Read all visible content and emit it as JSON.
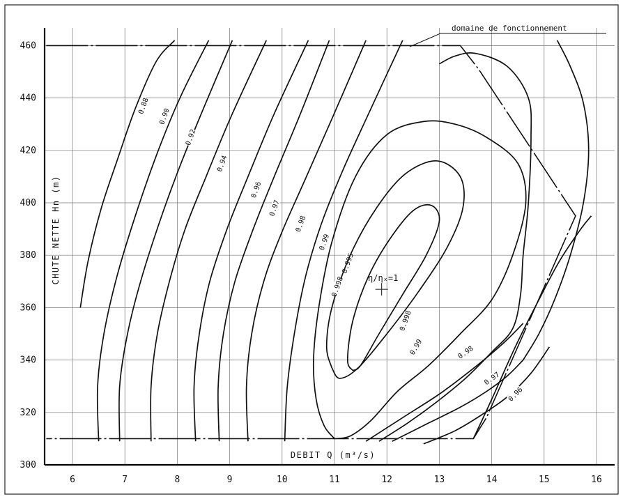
{
  "chart_data": {
    "type": "line",
    "xlabel": "DEBIT  Q  (m³/s)",
    "ylabel": "CHUTE  NETTE  Hn  (m)",
    "xlim": [
      5.5,
      16.3
    ],
    "ylim": [
      300,
      468
    ],
    "x_ticks": [
      "6",
      "7",
      "8",
      "9",
      "10",
      "11",
      "12",
      "13",
      "14",
      "15",
      "16"
    ],
    "y_ticks": [
      "300",
      "320",
      "340",
      "360",
      "380",
      "400",
      "420",
      "440",
      "460"
    ],
    "grid": true,
    "annotations": {
      "domain": "domaine de fonctionnement",
      "best_point": "η/ηₓ=1",
      "best_point_xy": [
        11.9,
        367
      ]
    },
    "domain_boundary": [
      [
        5.5,
        460
      ],
      [
        13.4,
        460
      ],
      [
        13.75,
        451
      ],
      [
        15.6,
        395
      ],
      [
        13.9,
        318
      ],
      [
        13.65,
        310
      ],
      [
        5.5,
        310
      ]
    ],
    "series": [
      {
        "name": "0.88",
        "label_at": [
          7.35,
          437
        ],
        "label_angle": -70,
        "points": [
          [
            6.15,
            360
          ],
          [
            6.3,
            378
          ],
          [
            6.55,
            398
          ],
          [
            6.85,
            416
          ],
          [
            7.2,
            436
          ],
          [
            7.6,
            454
          ],
          [
            7.95,
            462
          ]
        ]
      },
      {
        "name": "0.90",
        "label_at": [
          7.75,
          433
        ],
        "label_angle": -70,
        "points": [
          [
            6.5,
            309
          ],
          [
            6.48,
            330
          ],
          [
            6.6,
            350
          ],
          [
            6.85,
            372
          ],
          [
            7.2,
            395
          ],
          [
            7.6,
            418
          ],
          [
            8.05,
            440
          ],
          [
            8.6,
            462
          ]
        ]
      },
      {
        "name": "0.92",
        "label_at": [
          8.25,
          425
        ],
        "label_angle": -70,
        "points": [
          [
            6.9,
            309
          ],
          [
            6.9,
            330
          ],
          [
            7.05,
            350
          ],
          [
            7.3,
            370
          ],
          [
            7.65,
            392
          ],
          [
            8.05,
            414
          ],
          [
            8.5,
            436
          ],
          [
            9.05,
            462
          ]
        ]
      },
      {
        "name": "0.94",
        "label_at": [
          8.85,
          415
        ],
        "label_angle": -70,
        "points": [
          [
            7.5,
            309
          ],
          [
            7.5,
            330
          ],
          [
            7.62,
            350
          ],
          [
            7.85,
            370
          ],
          [
            8.15,
            390
          ],
          [
            8.55,
            410
          ],
          [
            9.05,
            434
          ],
          [
            9.7,
            462
          ]
        ]
      },
      {
        "name": "0.96",
        "label_at": [
          9.5,
          405
        ],
        "label_angle": -70,
        "points": [
          [
            8.35,
            309
          ],
          [
            8.32,
            330
          ],
          [
            8.42,
            350
          ],
          [
            8.62,
            370
          ],
          [
            8.95,
            390
          ],
          [
            9.35,
            410
          ],
          [
            9.85,
            434
          ],
          [
            10.5,
            462
          ]
        ]
      },
      {
        "name": "0.97",
        "label_at": [
          9.85,
          398
        ],
        "label_angle": -70,
        "points": [
          [
            8.8,
            309
          ],
          [
            8.78,
            330
          ],
          [
            8.88,
            350
          ],
          [
            9.1,
            370
          ],
          [
            9.45,
            390
          ],
          [
            9.85,
            410
          ],
          [
            10.35,
            434
          ],
          [
            10.9,
            462
          ]
        ]
      },
      {
        "name": "0.98",
        "label_at": [
          10.35,
          392
        ],
        "label_angle": -70,
        "points": [
          [
            9.35,
            309
          ],
          [
            9.32,
            330
          ],
          [
            9.42,
            350
          ],
          [
            9.65,
            370
          ],
          [
            9.98,
            388
          ],
          [
            10.42,
            408
          ],
          [
            10.95,
            432
          ],
          [
            11.6,
            462
          ]
        ]
      },
      {
        "name": "0.99",
        "label_at": [
          10.8,
          385
        ],
        "label_angle": -70,
        "points": [
          [
            10.05,
            309
          ],
          [
            10.1,
            330
          ],
          [
            10.25,
            352
          ],
          [
            10.45,
            372
          ],
          [
            10.75,
            392
          ],
          [
            11.15,
            412
          ],
          [
            11.65,
            434
          ],
          [
            12.3,
            462
          ]
        ]
      },
      {
        "name": "0.98",
        "label_at": [
          13.5,
          343
        ],
        "label_angle": -35,
        "points": [
          [
            11.6,
            309
          ],
          [
            12.3,
            318
          ],
          [
            13.0,
            327
          ],
          [
            13.6,
            336
          ],
          [
            14.2,
            346
          ],
          [
            14.6,
            354
          ]
        ]
      },
      {
        "name": "0.97",
        "label_at": [
          14.0,
          333
        ],
        "label_angle": -35,
        "points": [
          [
            12.1,
            309
          ],
          [
            12.8,
            316
          ],
          [
            13.4,
            322
          ],
          [
            13.9,
            328
          ],
          [
            14.3,
            334
          ],
          [
            14.6,
            340
          ]
        ]
      },
      {
        "name": "0.96",
        "label_at": [
          14.45,
          327
        ],
        "label_angle": -45,
        "points": [
          [
            12.7,
            308
          ],
          [
            13.3,
            313
          ],
          [
            13.8,
            319
          ],
          [
            14.3,
            326
          ],
          [
            14.75,
            335
          ],
          [
            15.1,
            345
          ]
        ]
      },
      {
        "name": "0.995",
        "label_at": [
          11.25,
          377
        ],
        "label_angle": -70,
        "points": [
          [
            11.0,
            310
          ],
          [
            10.8,
            315
          ],
          [
            10.65,
            325
          ],
          [
            10.6,
            340
          ],
          [
            10.7,
            360
          ],
          [
            10.95,
            385
          ],
          [
            11.4,
            410
          ],
          [
            12.0,
            426
          ],
          [
            12.7,
            431
          ],
          [
            13.3,
            430
          ],
          [
            13.9,
            425
          ],
          [
            14.5,
            415
          ],
          [
            14.65,
            400
          ],
          [
            14.4,
            380
          ],
          [
            14.0,
            363
          ],
          [
            13.4,
            350
          ],
          [
            12.8,
            338
          ],
          [
            12.2,
            328
          ],
          [
            11.7,
            317
          ],
          [
            11.3,
            311
          ],
          [
            11.0,
            310
          ]
        ]
      }
    ],
    "closed_contours": [
      {
        "name": "0.998",
        "label_at": [
          11.05,
          368
        ],
        "label_angle": -70,
        "points": [
          [
            10.95,
            337
          ],
          [
            10.85,
            345
          ],
          [
            10.95,
            360
          ],
          [
            11.3,
            380
          ],
          [
            11.8,
            398
          ],
          [
            12.35,
            411
          ],
          [
            12.95,
            416
          ],
          [
            13.4,
            410
          ],
          [
            13.45,
            398
          ],
          [
            13.15,
            383
          ],
          [
            12.6,
            366
          ],
          [
            12.0,
            350
          ],
          [
            11.45,
            337
          ],
          [
            11.1,
            333
          ],
          [
            10.95,
            337
          ]
        ]
      },
      {
        "name": "0.998",
        "label_at": [
          12.35,
          355
        ],
        "label_angle": -70,
        "points": [
          [
            11.35,
            336
          ],
          [
            11.25,
            340
          ],
          [
            11.35,
            355
          ],
          [
            11.65,
            372
          ],
          [
            12.05,
            386
          ],
          [
            12.5,
            397
          ],
          [
            12.85,
            399
          ],
          [
            13.0,
            393
          ],
          [
            12.75,
            380
          ],
          [
            12.3,
            365
          ],
          [
            11.85,
            350
          ],
          [
            11.5,
            338
          ],
          [
            11.35,
            336
          ]
        ]
      },
      {
        "name": "0.99",
        "label_at": [
          12.55,
          345
        ],
        "label_angle": -60,
        "points": [
          [
            11.85,
            309
          ],
          [
            12.4,
            316
          ],
          [
            12.95,
            324
          ],
          [
            13.5,
            333
          ],
          [
            14.0,
            343
          ],
          [
            14.4,
            352
          ],
          [
            14.55,
            365
          ],
          [
            14.6,
            380
          ],
          [
            14.7,
            400
          ],
          [
            14.75,
            425
          ],
          [
            14.7,
            440
          ],
          [
            14.3,
            452
          ],
          [
            13.7,
            457
          ],
          [
            13.3,
            456
          ],
          [
            13.0,
            453
          ]
        ]
      }
    ],
    "outer_contour": {
      "name": "",
      "points": [
        [
          15.25,
          462
        ],
        [
          15.5,
          452
        ],
        [
          15.75,
          438
        ],
        [
          15.85,
          420
        ],
        [
          15.75,
          400
        ],
        [
          15.5,
          380
        ],
        [
          15.2,
          363
        ],
        [
          14.9,
          350
        ],
        [
          14.6,
          340
        ]
      ]
    },
    "right_contour": {
      "name": "",
      "points": [
        [
          13.65,
          310
        ],
        [
          14.0,
          325
        ],
        [
          14.45,
          345
        ],
        [
          14.9,
          363
        ],
        [
          15.3,
          378
        ],
        [
          15.7,
          390
        ],
        [
          15.9,
          395
        ]
      ]
    }
  }
}
